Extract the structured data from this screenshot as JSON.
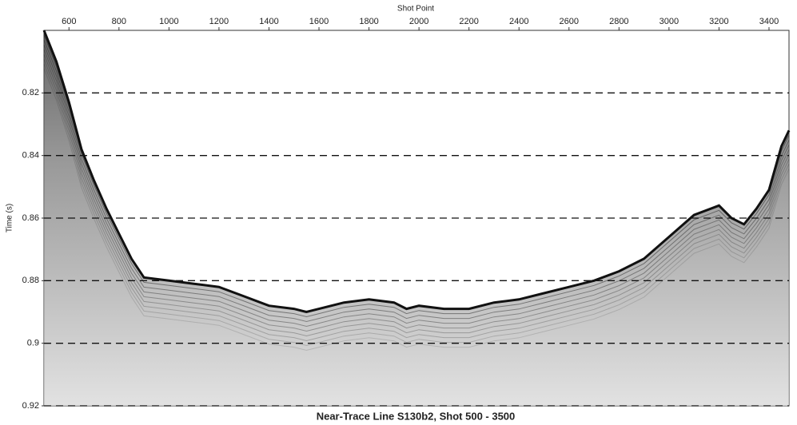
{
  "chart_data": {
    "type": "seismic",
    "title": "Near-Trace Line S130b2, Shot 500 - 3500",
    "x_label": "Shot Point",
    "y_label": "Time (s)",
    "x": [
      500,
      550,
      600,
      650,
      700,
      750,
      800,
      850,
      900,
      1000,
      1100,
      1200,
      1300,
      1400,
      1500,
      1550,
      1600,
      1700,
      1800,
      1900,
      1950,
      2000,
      2100,
      2200,
      2300,
      2400,
      2500,
      2600,
      2700,
      2800,
      2900,
      3000,
      3100,
      3200,
      3250,
      3300,
      3350,
      3400,
      3450,
      3480
    ],
    "values": [
      0.8,
      0.81,
      0.823,
      0.838,
      0.848,
      0.857,
      0.865,
      0.873,
      0.879,
      0.88,
      0.881,
      0.882,
      0.885,
      0.888,
      0.889,
      0.89,
      0.889,
      0.887,
      0.886,
      0.887,
      0.889,
      0.888,
      0.889,
      0.889,
      0.887,
      0.886,
      0.884,
      0.882,
      0.88,
      0.877,
      0.873,
      0.866,
      0.859,
      0.856,
      0.86,
      0.862,
      0.857,
      0.851,
      0.837,
      0.832
    ],
    "color": "#111111",
    "xlim": [
      500,
      3480
    ],
    "xticks": [
      600,
      800,
      1000,
      1200,
      1400,
      1600,
      1800,
      2000,
      2200,
      2400,
      2600,
      2800,
      3000,
      3200,
      3400
    ],
    "ylim": [
      0.92,
      0.8
    ],
    "yticks": [
      0.82,
      0.84,
      0.86,
      0.88,
      0.9,
      0.92
    ],
    "grid": true
  }
}
